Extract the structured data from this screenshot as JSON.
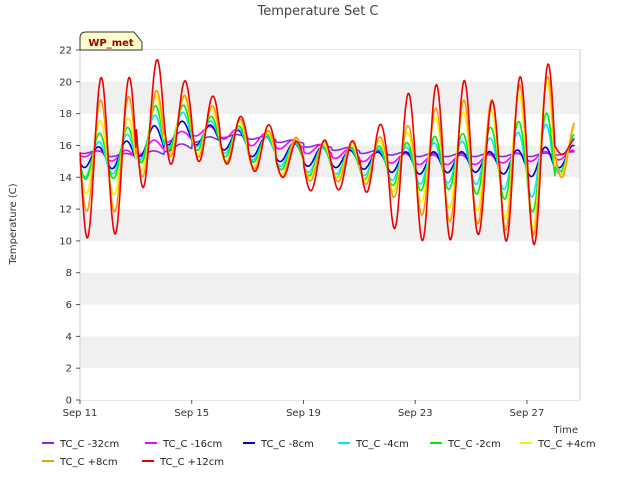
{
  "chart_data": {
    "type": "line",
    "title": "Temperature Set C",
    "xlabel": "Time",
    "ylabel": "Temperature (C)",
    "badge": "WP_met",
    "xlim": [
      "Sep 11",
      "Sep 28.9"
    ],
    "ylim": [
      0,
      22
    ],
    "x_ticks": [
      "Sep 11",
      "Sep 15",
      "Sep 19",
      "Sep 23",
      "Sep 27"
    ],
    "y_ticks": [
      0,
      2,
      4,
      6,
      8,
      10,
      12,
      14,
      16,
      18,
      20,
      22
    ],
    "grid": "horizontal bands",
    "legend_position": "bottom",
    "x": [
      "Sep 11",
      "Sep 12",
      "Sep 13",
      "Sep 14",
      "Sep 15",
      "Sep 16",
      "Sep 17",
      "Sep 18",
      "Sep 19",
      "Sep 20",
      "Sep 21",
      "Sep 22",
      "Sep 23",
      "Sep 24",
      "Sep 25",
      "Sep 26",
      "Sep 27",
      "Sep 28"
    ],
    "daily_extremes_note_free": true,
    "series": [
      {
        "name": "TC_C -32cm",
        "color": "#8a2be2",
        "mean": [
          15.6,
          15.4,
          15.4,
          15.8,
          16.3,
          16.6,
          16.5,
          16.3,
          16.0,
          15.8,
          15.6,
          15.5,
          15.4,
          15.4,
          15.4,
          15.4,
          15.4,
          15.5
        ],
        "min": [
          15.5,
          15.3,
          15.3,
          15.6,
          16.2,
          16.5,
          16.4,
          16.2,
          15.9,
          15.7,
          15.5,
          15.4,
          15.3,
          15.3,
          15.3,
          15.3,
          15.3,
          15.4
        ],
        "max": [
          15.7,
          15.5,
          15.6,
          16.0,
          16.5,
          16.7,
          16.6,
          16.4,
          16.1,
          15.9,
          15.7,
          15.6,
          15.5,
          15.5,
          15.5,
          15.5,
          15.5,
          15.6
        ]
      },
      {
        "name": "TC_C -16cm",
        "color": "#ff00ff",
        "mean": [
          15.5,
          15.3,
          15.8,
          16.5,
          16.9,
          16.8,
          16.4,
          16.1,
          15.8,
          15.5,
          15.3,
          15.2,
          15.1,
          15.1,
          15.1,
          15.2,
          15.3,
          15.4
        ],
        "min": [
          15.3,
          15.0,
          15.4,
          16.2,
          16.6,
          16.4,
          16.0,
          15.8,
          15.5,
          15.2,
          15.0,
          14.9,
          14.8,
          14.8,
          14.8,
          14.9,
          15.0,
          15.1
        ],
        "max": [
          15.7,
          15.6,
          16.2,
          16.8,
          17.2,
          17.1,
          16.8,
          16.4,
          16.1,
          15.8,
          15.6,
          15.5,
          15.4,
          15.4,
          15.4,
          15.5,
          15.6,
          15.7
        ]
      },
      {
        "name": "TC_C -8cm",
        "color": "#0000cc",
        "mean": [
          15.3,
          15.3,
          16.2,
          16.9,
          16.8,
          16.5,
          16.0,
          15.6,
          15.3,
          15.2,
          15.1,
          15.0,
          14.9,
          14.9,
          15.0,
          15.0,
          15.0,
          15.3
        ],
        "min": [
          14.6,
          14.5,
          15.3,
          16.0,
          16.0,
          15.7,
          15.3,
          15.0,
          14.7,
          14.6,
          14.5,
          14.3,
          14.2,
          14.3,
          14.3,
          14.2,
          14.0,
          14.6
        ],
        "max": [
          15.9,
          16.1,
          17.1,
          17.5,
          17.3,
          17.0,
          16.6,
          16.2,
          15.9,
          15.7,
          15.6,
          15.6,
          15.6,
          15.6,
          15.6,
          15.7,
          15.8,
          16.0
        ]
      },
      {
        "name": "TC_C -4cm",
        "color": "#00e5ee",
        "mean": [
          15.2,
          15.2,
          16.4,
          17.0,
          16.9,
          16.4,
          15.9,
          15.5,
          15.2,
          15.0,
          15.0,
          14.9,
          14.8,
          14.8,
          14.9,
          14.9,
          14.8,
          15.3
        ],
        "min": [
          14.0,
          14.2,
          15.1,
          15.9,
          15.9,
          15.5,
          15.1,
          14.7,
          14.3,
          14.2,
          14.1,
          13.8,
          13.6,
          13.7,
          13.6,
          13.3,
          12.8,
          14.2
        ],
        "max": [
          16.2,
          16.5,
          17.8,
          18.1,
          17.6,
          17.1,
          16.6,
          16.2,
          15.9,
          15.8,
          15.8,
          15.9,
          16.2,
          16.3,
          16.5,
          16.9,
          17.3,
          16.5
        ]
      },
      {
        "name": "TC_C -2cm",
        "color": "#00ee00",
        "mean": [
          15.3,
          15.2,
          16.6,
          17.1,
          16.9,
          16.4,
          15.8,
          15.4,
          15.1,
          14.9,
          14.9,
          14.8,
          14.8,
          14.8,
          14.9,
          14.9,
          14.8,
          15.5
        ],
        "min": [
          13.9,
          13.9,
          14.9,
          15.8,
          15.7,
          15.3,
          15.0,
          14.5,
          14.1,
          14.0,
          13.9,
          13.5,
          13.2,
          13.3,
          13.0,
          12.7,
          11.8,
          14.4
        ],
        "max": [
          16.8,
          16.9,
          18.4,
          18.6,
          17.9,
          17.3,
          16.8,
          16.3,
          16.0,
          15.9,
          16.0,
          16.2,
          16.6,
          16.8,
          17.2,
          17.6,
          17.9,
          16.7
        ]
      },
      {
        "name": "TC_C +4cm",
        "color": "#ffee00",
        "mean": [
          15.2,
          15.1,
          16.6,
          17.2,
          17.0,
          16.4,
          15.7,
          15.3,
          15.0,
          14.9,
          14.8,
          14.7,
          14.7,
          14.7,
          14.8,
          14.8,
          14.8,
          15.6
        ],
        "min": [
          13.0,
          12.8,
          14.4,
          15.5,
          15.4,
          15.0,
          14.7,
          14.2,
          14.0,
          14.0,
          13.9,
          13.2,
          12.6,
          12.2,
          12.0,
          11.6,
          11.0,
          14.2
        ],
        "max": [
          17.6,
          17.4,
          19.0,
          19.1,
          18.4,
          17.6,
          16.9,
          16.5,
          16.1,
          16.1,
          16.4,
          16.9,
          17.9,
          18.2,
          18.3,
          19.4,
          20.0,
          17.2
        ]
      },
      {
        "name": "TC_C +8cm",
        "color": "#ff9900",
        "mean": [
          15.1,
          15.0,
          16.6,
          17.3,
          17.0,
          16.4,
          15.7,
          15.2,
          15.0,
          14.8,
          14.8,
          14.6,
          14.6,
          14.6,
          14.7,
          14.7,
          14.8,
          15.7
        ],
        "min": [
          12.0,
          11.8,
          14.0,
          15.3,
          15.3,
          15.0,
          14.6,
          14.1,
          13.8,
          13.8,
          13.7,
          12.9,
          11.8,
          11.4,
          11.2,
          10.9,
          10.5,
          14.0
        ],
        "max": [
          19.0,
          18.8,
          19.3,
          19.2,
          18.6,
          17.8,
          17.1,
          16.6,
          16.3,
          16.3,
          16.7,
          17.4,
          18.5,
          19.0,
          19.0,
          20.0,
          20.3,
          17.5
        ]
      },
      {
        "name": "TC_C +12cm",
        "color": "#ee0000",
        "mean": [
          15.0,
          14.9,
          16.5,
          17.4,
          17.0,
          16.4,
          15.7,
          15.2,
          14.9,
          14.8,
          14.7,
          14.5,
          14.5,
          14.5,
          14.6,
          14.6,
          14.8,
          15.8
        ],
        "min": [
          10.3,
          10.4,
          13.6,
          14.9,
          15.1,
          14.9,
          14.5,
          14.0,
          13.1,
          13.2,
          13.3,
          11.0,
          10.2,
          10.3,
          10.4,
          10.2,
          9.9,
          15.5
        ],
        "max": [
          20.4,
          20.0,
          21.5,
          20.2,
          19.3,
          18.0,
          17.5,
          16.3,
          16.3,
          16.3,
          17.6,
          19.5,
          20.0,
          20.3,
          18.8,
          20.5,
          21.1,
          16.5
        ]
      }
    ]
  }
}
